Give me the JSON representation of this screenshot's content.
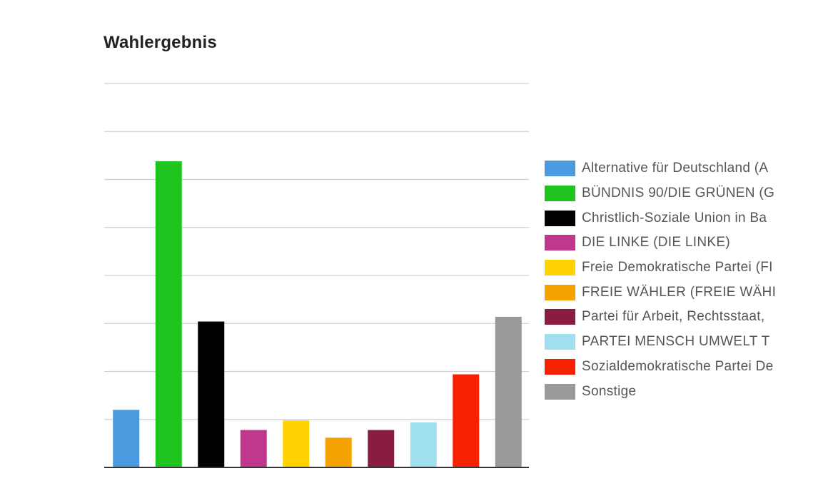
{
  "chart_data": {
    "type": "bar",
    "title": "Wahlergebnis",
    "xlabel": "",
    "ylabel": "",
    "ylim": [
      0,
      40
    ],
    "grid": true,
    "legend_position": "right",
    "categories": [
      "Alternative für Deutschland (A",
      "BÜNDNIS 90/DIE GRÜNEN (G",
      "Christlich-Soziale Union in Ba",
      "DIE LINKE (DIE LINKE)",
      "Freie Demokratische Partei (FI",
      "FREIE WÄHLER (FREIE WÄHI",
      "Partei für Arbeit, Rechtsstaat, ",
      "PARTEI MENSCH UMWELT T",
      "Sozialdemokratische Partei De",
      "Sonstige"
    ],
    "values": [
      6.0,
      31.9,
      15.2,
      3.9,
      4.9,
      3.1,
      3.9,
      4.7,
      9.7,
      15.7
    ],
    "colors": [
      "#4b9ae0",
      "#1ec51e",
      "#000000",
      "#c0388e",
      "#ffd200",
      "#f5a300",
      "#8a1c44",
      "#9fdff0",
      "#f52100",
      "#999999"
    ]
  }
}
